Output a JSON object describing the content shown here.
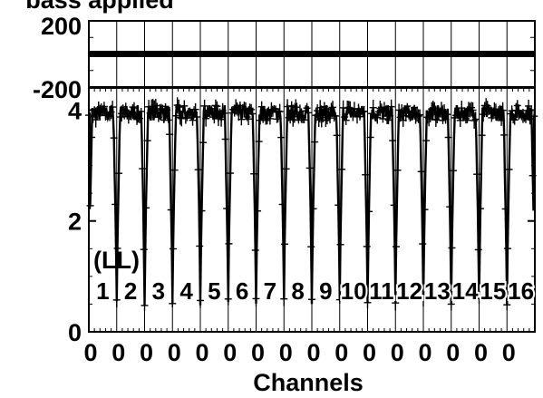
{
  "title": "bass applied",
  "stokes_label": "(LL)",
  "xlabel": "Channels",
  "chart_data": [
    {
      "name": "phase",
      "type": "line",
      "ylim": [
        -200,
        200
      ],
      "ytick_labels": [
        "200",
        "-200"
      ],
      "series": [
        {
          "values_summary": "flat band centred near 0 across all 16 IFs"
        }
      ]
    },
    {
      "name": "amplitude",
      "type": "line",
      "ylim": [
        0,
        4.4
      ],
      "yticks": [
        0,
        2,
        4
      ],
      "ytick_labels": [
        "0",
        "2",
        "4"
      ],
      "if_labels": [
        "1",
        "2",
        "3",
        "4",
        "5",
        "6",
        "7",
        "8",
        "9",
        "10",
        "11",
        "12",
        "13",
        "14",
        "15",
        "16"
      ],
      "xtick_labels": [
        "0",
        "0",
        "0",
        "0",
        "0",
        "0",
        "0",
        "0",
        "0",
        "0",
        "0",
        "0",
        "0",
        "0",
        "0",
        "0"
      ],
      "if_count": 16,
      "passband_level": 3.95,
      "edge_dip_minimum": 0.55,
      "grid": false,
      "color": "#000000"
    }
  ]
}
